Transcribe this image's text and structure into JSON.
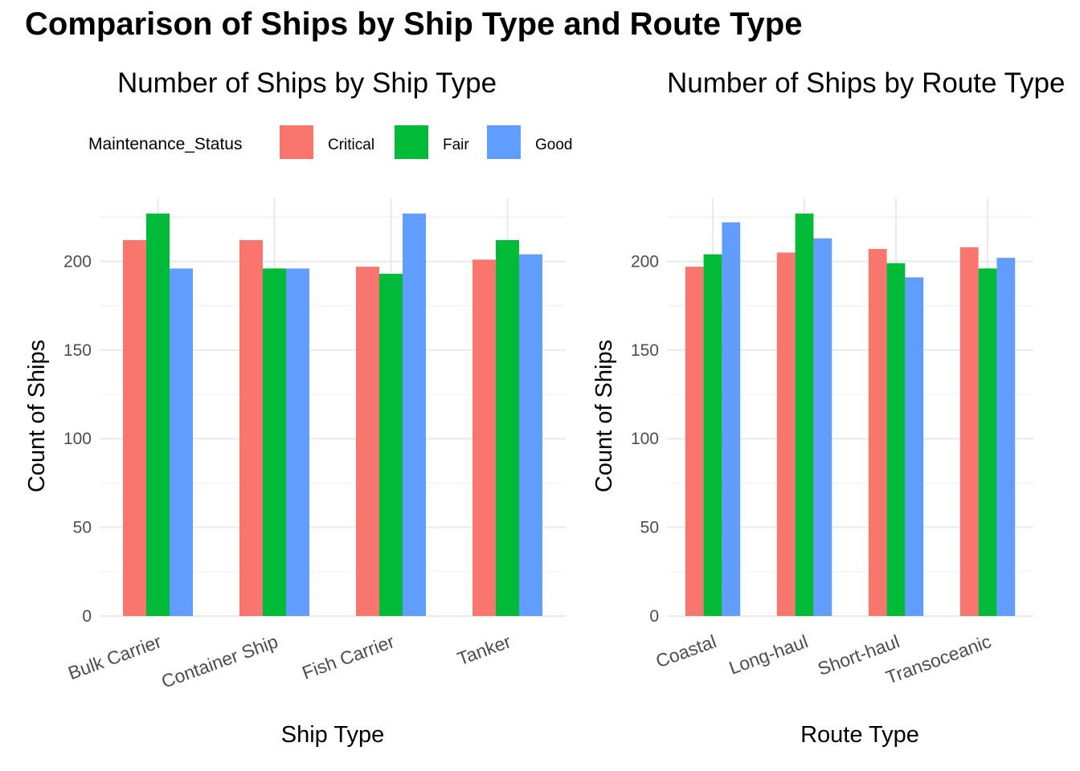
{
  "main_title": "Comparison of Ships by Ship Type and Route Type",
  "legend": {
    "title": "Maintenance_Status",
    "items": [
      {
        "label": "Critical",
        "color": "#F8766D"
      },
      {
        "label": "Fair",
        "color": "#00BA38"
      },
      {
        "label": "Good",
        "color": "#619CFF"
      }
    ]
  },
  "chart_data": [
    {
      "type": "bar",
      "title": "Number of Ships by Ship Type",
      "xlabel": "Ship Type",
      "ylabel": "Count of Ships",
      "ylim": [
        0,
        236
      ],
      "yticks": [
        0,
        50,
        100,
        150,
        200
      ],
      "grid": true,
      "categories": [
        "Bulk Carrier",
        "Container Ship",
        "Fish Carrier",
        "Tanker"
      ],
      "series": [
        {
          "name": "Critical",
          "values": [
            212,
            212,
            197,
            201
          ]
        },
        {
          "name": "Fair",
          "values": [
            227,
            196,
            193,
            212
          ]
        },
        {
          "name": "Good",
          "values": [
            196,
            196,
            227,
            204
          ]
        }
      ]
    },
    {
      "type": "bar",
      "title": "Number of Ships by Route Type",
      "xlabel": "Route Type",
      "ylabel": "Count of Ships",
      "ylim": [
        0,
        236
      ],
      "yticks": [
        0,
        50,
        100,
        150,
        200
      ],
      "grid": true,
      "categories": [
        "Coastal",
        "Long-haul",
        "Short-haul",
        "Transoceanic"
      ],
      "series": [
        {
          "name": "Critical",
          "values": [
            197,
            205,
            207,
            208
          ]
        },
        {
          "name": "Fair",
          "values": [
            204,
            227,
            199,
            196
          ]
        },
        {
          "name": "Good",
          "values": [
            222,
            213,
            191,
            202
          ]
        }
      ]
    }
  ]
}
